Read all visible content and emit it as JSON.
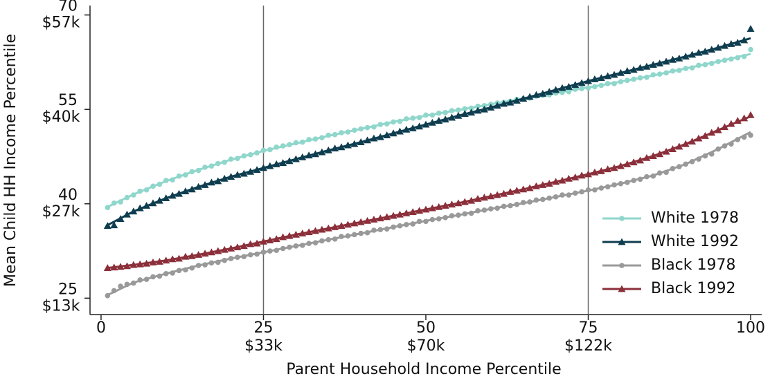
{
  "chart_data": {
    "type": "scatter_fit",
    "x_label": "Parent Household Income Percentile",
    "y_label": "Mean Child HH Income Percentile",
    "xlim": [
      -1.7,
      101.7
    ],
    "ylim": [
      22.4,
      71.5
    ],
    "xticks": [
      0,
      25,
      50,
      75,
      100
    ],
    "xtick_dollar_labels": [
      null,
      "$33k",
      "$70k",
      "$122k",
      null
    ],
    "yticks": [
      25,
      40,
      55,
      70
    ],
    "ytick_dollar_labels": [
      "$13k",
      "$27k",
      "$40k",
      "$57k"
    ],
    "vlines": [
      25,
      75
    ],
    "legend": "lower right",
    "x": [
      1,
      2,
      3,
      4,
      5,
      6,
      7,
      8,
      9,
      10,
      11,
      12,
      13,
      14,
      15,
      16,
      17,
      18,
      19,
      20,
      21,
      22,
      23,
      24,
      25,
      26,
      27,
      28,
      29,
      30,
      31,
      32,
      33,
      34,
      35,
      36,
      37,
      38,
      39,
      40,
      41,
      42,
      43,
      44,
      45,
      46,
      47,
      48,
      49,
      50,
      51,
      52,
      53,
      54,
      55,
      56,
      57,
      58,
      59,
      60,
      61,
      62,
      63,
      64,
      65,
      66,
      67,
      68,
      69,
      70,
      71,
      72,
      73,
      74,
      75,
      76,
      77,
      78,
      79,
      80,
      81,
      82,
      83,
      84,
      85,
      86,
      87,
      88,
      89,
      90,
      91,
      92,
      93,
      94,
      95,
      96,
      97,
      98,
      99,
      100
    ],
    "fit_x": [
      1,
      5,
      10,
      15,
      20,
      25,
      30,
      35,
      40,
      45,
      50,
      55,
      60,
      65,
      70,
      75,
      80,
      85,
      90,
      95,
      100
    ],
    "series": [
      {
        "name": "White 1978",
        "color": "#8fd6cb",
        "marker": "circle",
        "values": [
          39.4,
          40.1,
          40.3,
          41.0,
          41.4,
          42.0,
          42.2,
          42.8,
          43.1,
          43.7,
          43.8,
          44.4,
          44.6,
          45.1,
          45.3,
          45.8,
          46.0,
          46.4,
          46.6,
          47.1,
          47.2,
          47.6,
          47.8,
          48.1,
          48.5,
          48.6,
          49.0,
          49.2,
          49.4,
          49.7,
          49.8,
          50.2,
          50.3,
          50.5,
          50.9,
          51.0,
          51.3,
          51.4,
          51.7,
          51.9,
          52.1,
          52.2,
          52.6,
          52.7,
          53.0,
          53.1,
          53.5,
          53.6,
          53.7,
          54.1,
          54.1,
          54.4,
          54.5,
          54.8,
          54.9,
          55.1,
          55.2,
          55.5,
          55.6,
          55.8,
          56.0,
          56.1,
          56.3,
          56.6,
          56.7,
          56.8,
          57.1,
          57.2,
          57.3,
          57.6,
          57.7,
          57.8,
          58.2,
          58.3,
          58.4,
          58.6,
          58.8,
          59.1,
          59.1,
          59.4,
          59.6,
          59.8,
          60.0,
          60.1,
          60.5,
          60.6,
          60.8,
          61.1,
          61.2,
          61.5,
          61.6,
          62.0,
          62.1,
          62.3,
          62.6,
          62.8,
          63.0,
          63.2,
          63.4,
          64.5
        ],
        "fit": [
          39.5,
          41.5,
          43.6,
          45.4,
          47.0,
          48.4,
          49.6,
          50.8,
          51.9,
          53.0,
          54.0,
          54.9,
          55.8,
          56.7,
          57.6,
          58.5,
          59.4,
          60.4,
          61.5,
          62.6,
          63.8
        ]
      },
      {
        "name": "White 1992",
        "color": "#0e3d4f",
        "marker": "triangle",
        "values": [
          36.5,
          36.6,
          37.6,
          38.3,
          38.8,
          39.3,
          39.7,
          40.1,
          40.5,
          40.9,
          41.3,
          41.6,
          42.0,
          42.3,
          42.7,
          43.0,
          43.4,
          43.6,
          44.0,
          44.3,
          44.6,
          44.8,
          45.1,
          45.4,
          45.7,
          46.0,
          46.3,
          46.5,
          46.8,
          47.1,
          47.4,
          47.7,
          47.9,
          48.2,
          48.5,
          48.8,
          49.0,
          49.3,
          49.5,
          49.8,
          50.1,
          50.4,
          50.6,
          50.9,
          51.2,
          51.5,
          51.8,
          52.0,
          52.3,
          52.6,
          52.9,
          53.2,
          53.4,
          53.7,
          54.0,
          54.3,
          54.5,
          54.8,
          55.0,
          55.3,
          55.6,
          55.9,
          56.1,
          56.4,
          56.7,
          57.0,
          57.3,
          57.5,
          57.8,
          58.1,
          58.4,
          58.6,
          58.9,
          59.2,
          59.5,
          59.8,
          60.0,
          60.3,
          60.5,
          60.8,
          61.1,
          61.3,
          61.6,
          61.8,
          62.1,
          62.3,
          62.6,
          62.9,
          63.1,
          63.4,
          63.7,
          64.0,
          64.2,
          64.5,
          64.8,
          65.1,
          65.4,
          65.6,
          66.0,
          67.8
        ],
        "fit": [
          36.6,
          38.8,
          40.9,
          42.7,
          44.3,
          45.7,
          47.1,
          48.5,
          49.8,
          51.2,
          52.6,
          54.0,
          55.3,
          56.7,
          58.1,
          59.5,
          60.8,
          62.1,
          63.4,
          64.8,
          66.3
        ]
      },
      {
        "name": "Black 1978",
        "color": "#999999",
        "marker": "circle",
        "values": [
          25.4,
          26.2,
          26.9,
          27.2,
          27.4,
          27.9,
          28.0,
          28.4,
          28.5,
          28.9,
          29.0,
          29.4,
          29.5,
          29.8,
          30.2,
          30.3,
          30.6,
          30.7,
          31.0,
          31.3,
          31.5,
          31.6,
          31.9,
          32.0,
          32.3,
          32.5,
          32.6,
          32.9,
          33.1,
          33.3,
          33.4,
          33.7,
          33.8,
          34.1,
          34.3,
          34.4,
          34.8,
          34.9,
          35.1,
          35.3,
          35.4,
          35.8,
          35.9,
          36.0,
          36.3,
          36.5,
          36.7,
          36.8,
          37.2,
          37.2,
          37.5,
          37.6,
          37.8,
          38.1,
          38.2,
          38.4,
          38.5,
          38.9,
          39.0,
          39.2,
          39.3,
          39.6,
          39.7,
          39.9,
          40.2,
          40.3,
          40.6,
          40.7,
          40.9,
          41.1,
          41.4,
          41.4,
          41.7,
          41.9,
          42.2,
          42.2,
          42.5,
          42.7,
          43.0,
          43.2,
          43.4,
          43.7,
          43.9,
          44.3,
          44.4,
          44.9,
          45.0,
          45.6,
          45.9,
          46.3,
          46.7,
          47.1,
          47.6,
          47.9,
          48.7,
          49.2,
          49.5,
          50.2,
          50.6,
          50.9
        ],
        "fit": [
          25.5,
          27.5,
          28.9,
          30.2,
          31.3,
          32.3,
          33.3,
          34.3,
          35.3,
          36.3,
          37.3,
          38.2,
          39.2,
          40.1,
          41.1,
          42.1,
          43.2,
          44.5,
          46.3,
          48.7,
          51.4
        ]
      },
      {
        "name": "Black 1992",
        "color": "#8b2f3a",
        "marker": "triangle",
        "values": [
          29.8,
          29.9,
          30.0,
          30.1,
          30.3,
          30.4,
          30.5,
          30.7,
          30.8,
          31.0,
          31.2,
          31.3,
          31.6,
          31.7,
          31.9,
          32.1,
          32.3,
          32.5,
          32.7,
          32.9,
          33.1,
          33.3,
          33.6,
          33.7,
          34.0,
          34.2,
          34.4,
          34.7,
          34.9,
          35.1,
          35.3,
          35.5,
          35.7,
          35.9,
          36.1,
          36.3,
          36.5,
          36.7,
          36.9,
          37.1,
          37.3,
          37.5,
          37.7,
          37.9,
          38.1,
          38.3,
          38.5,
          38.7,
          38.9,
          39.1,
          39.3,
          39.5,
          39.7,
          39.9,
          40.1,
          40.3,
          40.5,
          40.8,
          41.0,
          41.2,
          41.4,
          41.6,
          41.9,
          42.1,
          42.3,
          42.5,
          42.8,
          43.0,
          43.2,
          43.5,
          43.7,
          44.0,
          44.2,
          44.5,
          44.7,
          45.0,
          45.2,
          45.5,
          45.7,
          46.0,
          46.3,
          46.6,
          46.9,
          47.3,
          47.6,
          47.9,
          48.3,
          48.7,
          49.1,
          49.5,
          49.9,
          50.4,
          50.8,
          51.3,
          51.7,
          52.2,
          52.7,
          53.2,
          53.6,
          54.1
        ],
        "fit": [
          29.8,
          30.3,
          31.0,
          31.9,
          32.9,
          34.0,
          35.1,
          36.1,
          37.1,
          38.1,
          39.1,
          40.1,
          41.2,
          42.3,
          43.5,
          44.7,
          46.0,
          47.6,
          49.5,
          51.7,
          53.9
        ]
      }
    ]
  }
}
